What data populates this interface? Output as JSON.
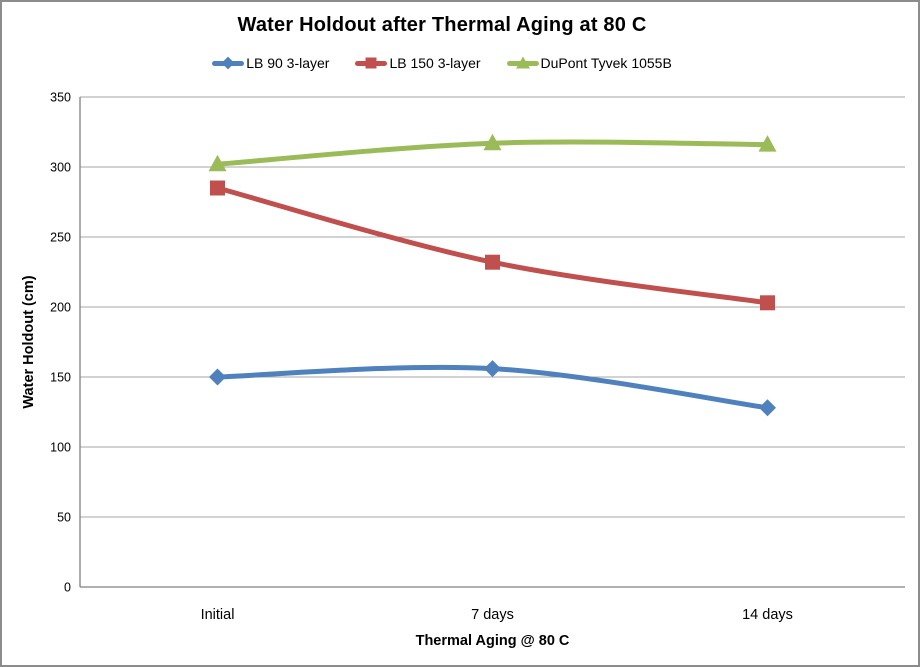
{
  "window": {
    "background": "#ffffff",
    "frame_border_color": "#8c8c8c"
  },
  "chart_data": {
    "type": "line",
    "title": "Water Holdout after Thermal Aging at 80 C",
    "categories": [
      "Initial",
      "7 days",
      "14 days"
    ],
    "series": [
      {
        "name": "LB 90 3-layer",
        "color": "#4F81BD",
        "marker": "diamond",
        "values": [
          150,
          156,
          128
        ]
      },
      {
        "name": "LB 150 3-layer",
        "color": "#C0504D",
        "marker": "square",
        "values": [
          285,
          232,
          203
        ]
      },
      {
        "name": "DuPont Tyvek 1055B",
        "color": "#9BBB59",
        "marker": "triangle",
        "values": [
          302,
          317,
          316
        ]
      }
    ],
    "xlabel": "Thermal Aging @  80 C",
    "ylabel": "Water Holdout (cm)",
    "ylim": [
      0,
      350
    ],
    "ytick_step": 50,
    "ytick_labels": [
      "0",
      "50",
      "100",
      "150",
      "200",
      "250",
      "300",
      "350"
    ],
    "grid": true,
    "legend_position": "top",
    "line_smoothing": true,
    "gridline_color": "#A6A6A6",
    "axis_line_color": "#808080",
    "text_color": "#000000"
  }
}
